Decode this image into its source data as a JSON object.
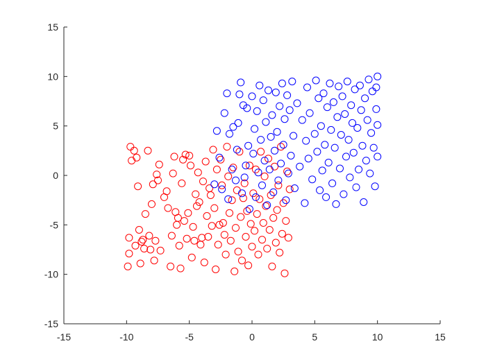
{
  "chart_data": {
    "type": "scatter",
    "title": "",
    "xlabel": "",
    "ylabel": "",
    "xlim": [
      -15,
      15
    ],
    "ylim": [
      -15,
      15
    ],
    "xticks": [
      -15,
      -10,
      -5,
      0,
      5,
      10,
      15
    ],
    "yticks": [
      -15,
      -10,
      -5,
      0,
      5,
      10,
      15
    ],
    "xtick_labels": [
      "-15",
      "-10",
      "-5",
      "0",
      "5",
      "10",
      "15"
    ],
    "ytick_labels": [
      "-15",
      "-10",
      "-5",
      "0",
      "5",
      "10",
      "15"
    ],
    "grid": false,
    "legend": "none",
    "marker": "open-circle",
    "series": [
      {
        "color": "#ff0000",
        "points": [
          [
            -9.9,
            -9.2
          ],
          [
            -9.8,
            -7.9
          ],
          [
            -9.8,
            -6.3
          ],
          [
            -9.7,
            2.9
          ],
          [
            -9.6,
            1.5
          ],
          [
            -9.4,
            2.5
          ],
          [
            -9.3,
            -7.1
          ],
          [
            -9.2,
            1.8
          ],
          [
            -9.1,
            -1.1
          ],
          [
            -9.0,
            -5.5
          ],
          [
            -8.9,
            -8.9
          ],
          [
            -8.8,
            -6.7
          ],
          [
            -8.7,
            -6.5
          ],
          [
            -8.6,
            -7.4
          ],
          [
            -8.5,
            -3.9
          ],
          [
            -8.3,
            2.5
          ],
          [
            -8.2,
            -6.1
          ],
          [
            -8.1,
            -7.5
          ],
          [
            -8.0,
            -2.9
          ],
          [
            -7.9,
            -0.9
          ],
          [
            -7.8,
            -8.6
          ],
          [
            -7.7,
            -6.6
          ],
          [
            -7.6,
            0.1
          ],
          [
            -7.5,
            -0.5
          ],
          [
            -7.4,
            1.1
          ],
          [
            -7.3,
            -7.6
          ],
          [
            -7.0,
            -2.2
          ],
          [
            -6.8,
            -1.6
          ],
          [
            -6.7,
            -3.3
          ],
          [
            -6.5,
            -9.2
          ],
          [
            -6.4,
            -6.1
          ],
          [
            -6.3,
            0.2
          ],
          [
            -6.2,
            1.9
          ],
          [
            -6.1,
            -3.7
          ],
          [
            -6.0,
            -5.0
          ],
          [
            -5.9,
            -4.3
          ],
          [
            -5.8,
            -7.1
          ],
          [
            -5.7,
            -9.4
          ],
          [
            -5.6,
            -0.8
          ],
          [
            -5.5,
            1.6
          ],
          [
            -5.4,
            -4.6
          ],
          [
            -5.3,
            2.1
          ],
          [
            -5.2,
            -6.4
          ],
          [
            -5.1,
            -3.8
          ],
          [
            -5.0,
            2.0
          ],
          [
            -4.9,
            1.0
          ],
          [
            -4.8,
            -8.3
          ],
          [
            -4.7,
            -5.2
          ],
          [
            -4.6,
            -6.6
          ],
          [
            -4.5,
            -1.9
          ],
          [
            -4.4,
            -3.1
          ],
          [
            -4.3,
            0.3
          ],
          [
            -4.2,
            -2.7
          ],
          [
            -4.1,
            -7.0
          ],
          [
            -4.0,
            -6.3
          ],
          [
            -3.9,
            -0.6
          ],
          [
            -3.8,
            -8.8
          ],
          [
            -3.7,
            1.4
          ],
          [
            -3.6,
            -4.1
          ],
          [
            -3.5,
            -6.2
          ],
          [
            -3.4,
            -1.3
          ],
          [
            -3.3,
            -2.0
          ],
          [
            -3.2,
            -5.1
          ],
          [
            -3.1,
            2.6
          ],
          [
            -3.0,
            -3.3
          ],
          [
            -2.9,
            -9.5
          ],
          [
            -2.8,
            0.6
          ],
          [
            -2.7,
            -7.0
          ],
          [
            -2.6,
            -5.0
          ],
          [
            -2.5,
            1.6
          ],
          [
            -2.4,
            -1.0
          ],
          [
            -2.3,
            -4.8
          ],
          [
            -2.2,
            -6.0
          ],
          [
            -2.1,
            -8.0
          ],
          [
            -2.0,
            2.9
          ],
          [
            -1.9,
            -0.1
          ],
          [
            -1.8,
            -3.8
          ],
          [
            -1.7,
            -6.6
          ],
          [
            -1.6,
            -2.5
          ],
          [
            -1.5,
            0.8
          ],
          [
            -1.4,
            -9.7
          ],
          [
            -1.3,
            -5.3
          ],
          [
            -1.2,
            -1.5
          ],
          [
            -1.1,
            -7.7
          ],
          [
            -1.0,
            2.4
          ],
          [
            -0.9,
            -4.2
          ],
          [
            -0.8,
            -8.6
          ],
          [
            -0.7,
            -2.3
          ],
          [
            -0.6,
            -0.8
          ],
          [
            -0.5,
            -6.2
          ],
          [
            -0.4,
            -3.6
          ],
          [
            -0.3,
            -9.1
          ],
          [
            -0.2,
            1.0
          ],
          [
            -0.1,
            -4.9
          ],
          [
            0.0,
            -7.2
          ],
          [
            0.1,
            -1.8
          ],
          [
            0.2,
            -5.6
          ],
          [
            0.3,
            0.6
          ],
          [
            0.4,
            -3.9
          ],
          [
            0.5,
            -8.0
          ],
          [
            0.6,
            -2.4
          ],
          [
            0.7,
            2.4
          ],
          [
            0.8,
            -6.5
          ],
          [
            0.9,
            -4.8
          ],
          [
            1.0,
            -0.1
          ],
          [
            1.1,
            -3.1
          ],
          [
            1.2,
            -7.4
          ],
          [
            1.3,
            1.7
          ],
          [
            1.4,
            -5.5
          ],
          [
            1.5,
            -2.0
          ],
          [
            1.6,
            -9.2
          ],
          [
            1.7,
            -4.3
          ],
          [
            1.8,
            0.9
          ],
          [
            1.9,
            -6.8
          ],
          [
            2.0,
            -3.5
          ],
          [
            2.1,
            -1.0
          ],
          [
            2.2,
            -7.8
          ],
          [
            2.3,
            2.9
          ],
          [
            2.4,
            -5.9
          ],
          [
            2.5,
            -2.8
          ],
          [
            2.6,
            -9.9
          ],
          [
            2.7,
            -4.6
          ],
          [
            2.8,
            0.4
          ],
          [
            2.9,
            -6.3
          ],
          [
            3.0,
            -1.4
          ]
        ]
      },
      {
        "color": "#0000ff",
        "points": [
          [
            -3.0,
            -0.9
          ],
          [
            -2.8,
            4.5
          ],
          [
            -2.6,
            1.8
          ],
          [
            -2.4,
            -1.4
          ],
          [
            -2.2,
            6.3
          ],
          [
            -2.0,
            8.3
          ],
          [
            -1.9,
            -2.4
          ],
          [
            -1.8,
            4.2
          ],
          [
            -1.6,
            0.6
          ],
          [
            -1.5,
            4.9
          ],
          [
            -1.3,
            -0.5
          ],
          [
            -1.2,
            2.6
          ],
          [
            -1.1,
            5.3
          ],
          [
            -1.0,
            8.2
          ],
          [
            -0.9,
            9.4
          ],
          [
            -0.8,
            -1.8
          ],
          [
            -0.7,
            7.1
          ],
          [
            -0.6,
            -0.2
          ],
          [
            -0.5,
            1.0
          ],
          [
            -0.4,
            6.8
          ],
          [
            -0.3,
            3.0
          ],
          [
            -0.2,
            -3.4
          ],
          [
            0.0,
            8.0
          ],
          [
            0.1,
            2.2
          ],
          [
            0.2,
            4.7
          ],
          [
            0.3,
            -2.2
          ],
          [
            0.4,
            6.5
          ],
          [
            0.5,
            0.3
          ],
          [
            0.6,
            9.1
          ],
          [
            0.7,
            3.6
          ],
          [
            0.8,
            -1.0
          ],
          [
            0.9,
            7.6
          ],
          [
            1.0,
            1.5
          ],
          [
            1.1,
            5.4
          ],
          [
            1.2,
            -3.0
          ],
          [
            1.3,
            8.6
          ],
          [
            1.4,
            0.6
          ],
          [
            1.5,
            3.9
          ],
          [
            1.6,
            6.1
          ],
          [
            1.7,
            -1.7
          ],
          [
            1.8,
            2.5
          ],
          [
            1.9,
            8.4
          ],
          [
            2.0,
            4.4
          ],
          [
            2.1,
            -0.5
          ],
          [
            2.2,
            7.0
          ],
          [
            2.3,
            1.2
          ],
          [
            2.4,
            9.3
          ],
          [
            2.5,
            3.1
          ],
          [
            2.6,
            5.7
          ],
          [
            2.7,
            -2.5
          ],
          [
            2.8,
            8.1
          ],
          [
            2.9,
            0.2
          ],
          [
            3.0,
            6.6
          ],
          [
            3.1,
            2.0
          ],
          [
            3.2,
            9.5
          ],
          [
            3.3,
            4.0
          ],
          [
            3.4,
            -1.3
          ],
          [
            3.6,
            7.3
          ],
          [
            3.8,
            0.9
          ],
          [
            4.0,
            5.6
          ],
          [
            4.2,
            -2.8
          ],
          [
            4.3,
            3.5
          ],
          [
            4.4,
            8.9
          ],
          [
            4.5,
            1.7
          ],
          [
            4.6,
            6.3
          ],
          [
            4.8,
            -0.4
          ],
          [
            5.0,
            4.2
          ],
          [
            5.1,
            9.6
          ],
          [
            5.2,
            2.4
          ],
          [
            5.3,
            7.8
          ],
          [
            5.4,
            -1.5
          ],
          [
            5.5,
            5.0
          ],
          [
            5.6,
            0.5
          ],
          [
            5.7,
            8.3
          ],
          [
            5.8,
            3.1
          ],
          [
            5.9,
            -2.2
          ],
          [
            6.0,
            6.9
          ],
          [
            6.1,
            1.3
          ],
          [
            6.2,
            9.3
          ],
          [
            6.3,
            4.6
          ],
          [
            6.4,
            -0.8
          ],
          [
            6.5,
            7.4
          ],
          [
            6.6,
            2.8
          ],
          [
            6.7,
            -2.9
          ],
          [
            6.8,
            5.9
          ],
          [
            6.9,
            9.0
          ],
          [
            7.0,
            0.7
          ],
          [
            7.1,
            4.1
          ],
          [
            7.2,
            8.0
          ],
          [
            7.3,
            -1.9
          ],
          [
            7.4,
            6.2
          ],
          [
            7.5,
            1.9
          ],
          [
            7.6,
            9.5
          ],
          [
            7.7,
            3.6
          ],
          [
            7.8,
            -0.2
          ],
          [
            7.9,
            7.1
          ],
          [
            8.0,
            5.3
          ],
          [
            8.1,
            2.3
          ],
          [
            8.2,
            8.7
          ],
          [
            8.3,
            -1.2
          ],
          [
            8.4,
            4.8
          ],
          [
            8.5,
            0.6
          ],
          [
            8.6,
            9.1
          ],
          [
            8.7,
            6.6
          ],
          [
            8.8,
            3.0
          ],
          [
            8.9,
            -2.7
          ],
          [
            9.0,
            7.8
          ],
          [
            9.1,
            1.5
          ],
          [
            9.2,
            5.6
          ],
          [
            9.3,
            9.7
          ],
          [
            9.4,
            0.2
          ],
          [
            9.5,
            4.3
          ],
          [
            9.6,
            8.5
          ],
          [
            9.7,
            2.8
          ],
          [
            9.8,
            -1.1
          ],
          [
            9.9,
            6.7
          ],
          [
            10.0,
            10.0
          ],
          [
            10.0,
            5.1
          ],
          [
            10.0,
            1.9
          ],
          [
            9.9,
            8.9
          ]
        ]
      }
    ]
  }
}
